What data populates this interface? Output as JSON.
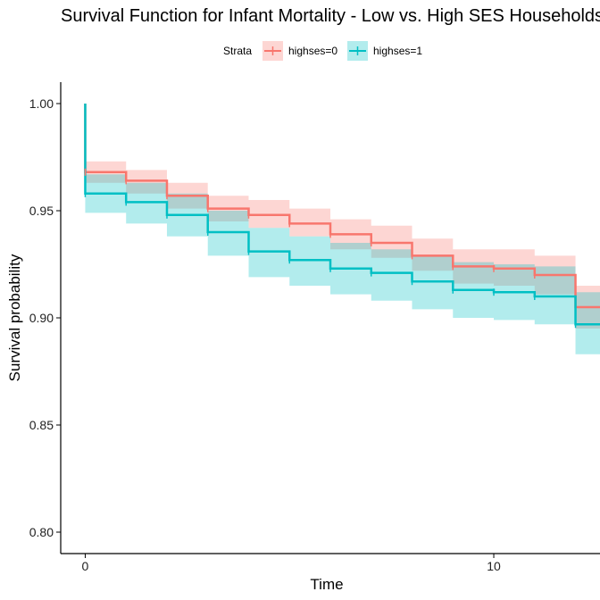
{
  "chart_data": {
    "type": "line",
    "subtype": "kaplan-meier-step",
    "title": "Survival Function for Infant Mortality - Low vs. High SES Households",
    "xlabel": "Time",
    "ylabel": "Survival probability",
    "xlim": [
      -0.6,
      12.6
    ],
    "ylim": [
      0.79,
      1.01
    ],
    "xticks": [
      0,
      10
    ],
    "yticks": [
      0.8,
      0.85,
      0.9,
      0.95,
      1.0
    ],
    "ytick_labels": [
      "0.80",
      "0.85",
      "0.90",
      "0.95",
      "1.00"
    ],
    "grid": false,
    "legend": {
      "title": "Strata",
      "position": "top"
    },
    "series": [
      {
        "name": "highses=0",
        "color": "#F8766D",
        "band_color": "#F8766D",
        "x": [
          0,
          1,
          2,
          3,
          4,
          5,
          6,
          7,
          8,
          9,
          10,
          11,
          12
        ],
        "y": [
          0.968,
          0.964,
          0.957,
          0.951,
          0.948,
          0.944,
          0.939,
          0.935,
          0.929,
          0.924,
          0.923,
          0.92,
          0.905
        ],
        "lower": [
          0.963,
          0.958,
          0.951,
          0.945,
          0.942,
          0.938,
          0.932,
          0.928,
          0.922,
          0.916,
          0.915,
          0.911,
          0.895
        ],
        "upper": [
          0.973,
          0.969,
          0.963,
          0.957,
          0.955,
          0.951,
          0.946,
          0.943,
          0.937,
          0.932,
          0.932,
          0.929,
          0.915
        ],
        "censor_x": [
          0,
          1,
          2,
          3,
          4,
          5,
          6,
          7,
          8,
          9,
          10,
          11
        ]
      },
      {
        "name": "highses=1",
        "color": "#00BFC4",
        "band_color": "#00BFC4",
        "x": [
          0,
          1,
          2,
          3,
          4,
          5,
          6,
          7,
          8,
          9,
          10,
          11,
          12
        ],
        "y": [
          0.958,
          0.954,
          0.948,
          0.94,
          0.931,
          0.927,
          0.923,
          0.921,
          0.917,
          0.913,
          0.912,
          0.91,
          0.897
        ],
        "lower": [
          0.949,
          0.944,
          0.938,
          0.929,
          0.919,
          0.915,
          0.911,
          0.908,
          0.904,
          0.9,
          0.899,
          0.897,
          0.883
        ],
        "upper": [
          0.967,
          0.963,
          0.958,
          0.95,
          0.942,
          0.938,
          0.935,
          0.932,
          0.929,
          0.926,
          0.925,
          0.924,
          0.912
        ],
        "censor_x": [
          0,
          1,
          2,
          3,
          4,
          5,
          6,
          7,
          8,
          9,
          10,
          11,
          12
        ]
      }
    ]
  }
}
